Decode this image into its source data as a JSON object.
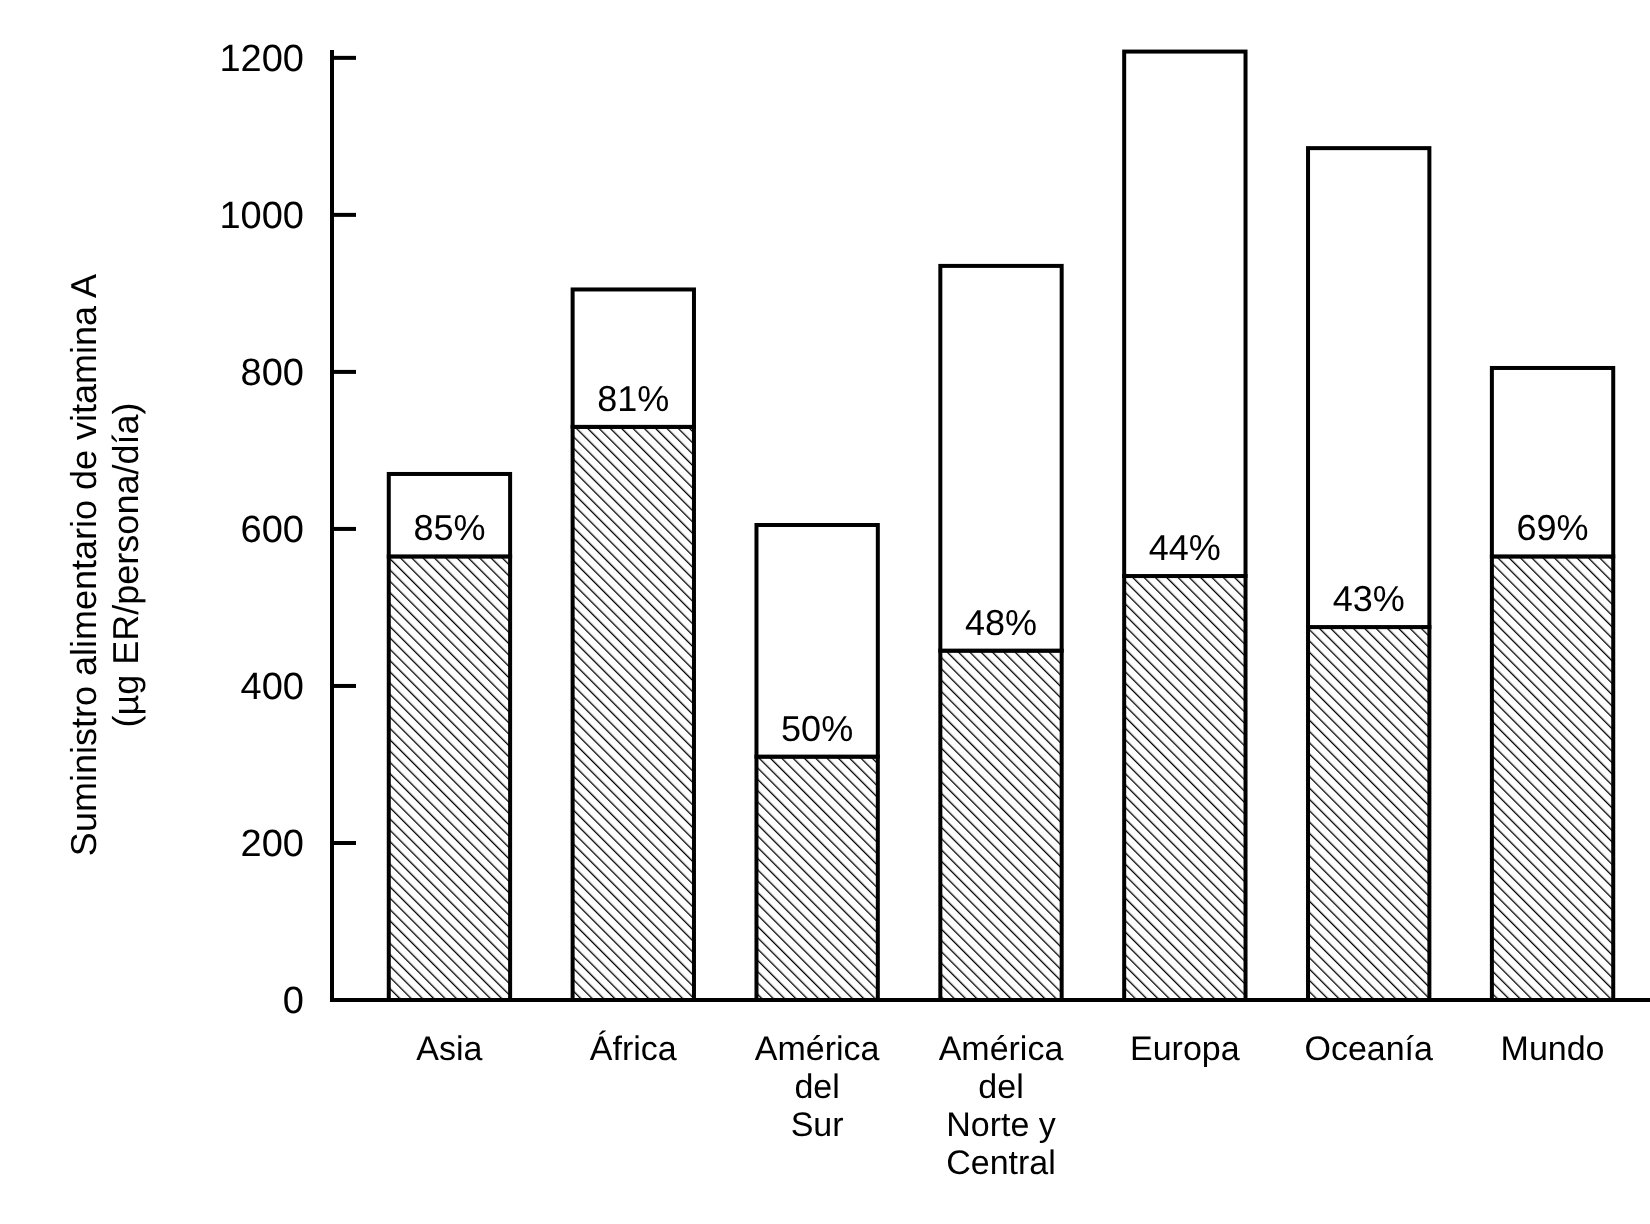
{
  "chart_data": {
    "type": "bar",
    "stacked": true,
    "ylabel": "Suministro alimentario de vitamina A (µg ER/persona/día)",
    "categories": [
      "Asia",
      "África",
      "América del Sur",
      "América del Norte y Central",
      "Europa",
      "Oceanía",
      "Mundo"
    ],
    "series": [
      {
        "color": "#000000",
        "values": [
          565,
          730,
          310,
          445,
          540,
          475,
          565
        ]
      },
      {
        "color": "#ffffff",
        "values": [
          105,
          175,
          295,
          490,
          668,
          610,
          240
        ]
      }
    ],
    "annotations": [
      {
        "text": "85%",
        "x": "Asia",
        "y": 565
      },
      {
        "text": "81%",
        "x": "África",
        "y": 730
      },
      {
        "text": "50%",
        "x": "América del Sur",
        "y": 310
      },
      {
        "text": "48%",
        "x": "América del Norte y Central",
        "y": 445
      },
      {
        "text": "44%",
        "x": "Europa",
        "y": 540
      },
      {
        "text": "43%",
        "x": "Oceanía",
        "y": 475
      },
      {
        "text": "69%",
        "x": "Mundo",
        "y": 565
      }
    ],
    "ylim": [
      0,
      1210
    ],
    "yticks": [
      0,
      200,
      400,
      600,
      800,
      1000,
      1200
    ],
    "grid": false
  }
}
